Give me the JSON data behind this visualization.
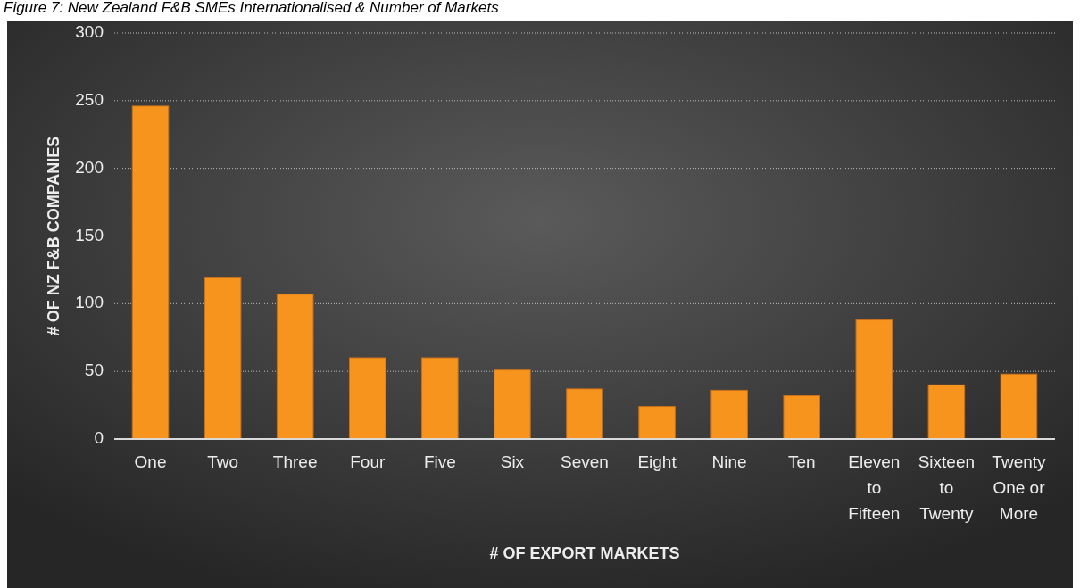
{
  "chart_data": {
    "type": "bar",
    "title": "Figure 7: New Zealand F&B SMEs Internationalised & Number of Markets",
    "xlabel": "# OF EXPORT MARKETS",
    "ylabel": "# OF NZ F&B COMPANIES",
    "categories": [
      "One",
      "Two",
      "Three",
      "Four",
      "Five",
      "Six",
      "Seven",
      "Eight",
      "Nine",
      "Ten",
      "Eleven to Fifteen",
      "Sixteen to Twenty",
      "Twenty One or More"
    ],
    "values": [
      246,
      119,
      107,
      60,
      60,
      51,
      37,
      24,
      36,
      32,
      88,
      40,
      48
    ],
    "color": "#f7941d",
    "ylim": [
      0,
      300
    ],
    "yticks": [
      0,
      50,
      100,
      150,
      200,
      250,
      300
    ],
    "grid": "y"
  }
}
